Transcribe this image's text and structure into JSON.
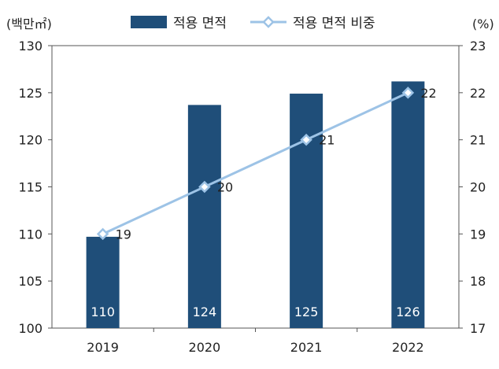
{
  "chart_data": {
    "type": "bar",
    "categories": [
      "2019",
      "2020",
      "2021",
      "2022"
    ],
    "series": [
      {
        "name": "적용 면적",
        "type": "bar",
        "axis": "left",
        "values": [
          109.7,
          123.7,
          124.9,
          126.2
        ],
        "data_labels": [
          "110",
          "124",
          "125",
          "126"
        ],
        "color": "#1f4e79"
      },
      {
        "name": "적용 면적 비중",
        "type": "line",
        "axis": "right",
        "values": [
          19,
          20,
          21,
          22
        ],
        "data_labels": [
          "19",
          "20",
          "21",
          "22"
        ],
        "color": "#9dc3e6",
        "marker": "diamond"
      }
    ],
    "y_left": {
      "unit_label": "(백만㎡)",
      "ylim": [
        100,
        130
      ],
      "ticks": [
        "100",
        "105",
        "110",
        "115",
        "120",
        "125",
        "130"
      ]
    },
    "y_right": {
      "unit_label": "(%)",
      "ylim": [
        17,
        23
      ],
      "ticks": [
        "17",
        "18",
        "19",
        "20",
        "21",
        "22",
        "23"
      ]
    },
    "grid": false,
    "legend_placement": "top-center"
  }
}
